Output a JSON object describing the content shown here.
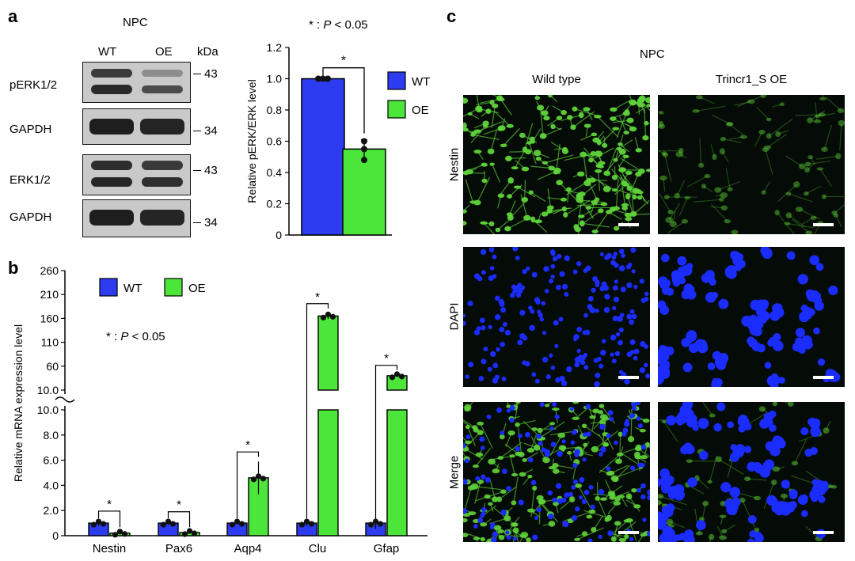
{
  "panel_a": {
    "letter": "a",
    "cell_type": "NPC",
    "lanes": [
      "WT",
      "OE"
    ],
    "mw_unit": "kDa",
    "blots": [
      {
        "label": "pERK1/2",
        "marker": "43"
      },
      {
        "label": "GAPDH",
        "marker": "34"
      },
      {
        "label": "ERK1/2",
        "marker": "43"
      },
      {
        "label": "GAPDH",
        "marker": "34"
      }
    ]
  },
  "panel_b": {
    "letter": "b"
  },
  "panel_c": {
    "letter": "c",
    "cell_type": "NPC",
    "columns": [
      "Wild type",
      "Trincr1_S OE"
    ],
    "rows": [
      "Nestin",
      "DAPI",
      "Merge"
    ]
  },
  "significance_note": "*",
  "significance_text": ": P < 0.05",
  "colors": {
    "wt": "#2d3cf0",
    "oe": "#4ce63a",
    "nestin": "#5fd43a",
    "dapi": "#1a2cff"
  },
  "chart_data": [
    {
      "type": "bar",
      "categories": [
        "WT",
        "OE"
      ],
      "values": [
        1.0,
        0.55
      ],
      "points": [
        [
          1.0,
          1.0,
          1.0
        ],
        [
          0.6,
          0.55,
          0.48
        ]
      ],
      "errors": [
        0.0,
        0.06
      ],
      "ylabel": "Relative pERK/ERK level",
      "ylim": [
        0,
        1.2
      ],
      "yticks": [
        "0",
        "0.2",
        "0.4",
        "0.6",
        "0.8",
        "1.0",
        "1.2"
      ],
      "legend": [
        "WT",
        "OE"
      ],
      "significance": "*",
      "note": "* : P < 0.05"
    },
    {
      "type": "bar",
      "categories": [
        "Nestin",
        "Pax6",
        "Aqp4",
        "Clu",
        "Gfap"
      ],
      "series": [
        {
          "name": "WT",
          "values": [
            1.0,
            1.0,
            1.0,
            1.0,
            1.0
          ],
          "errors": [
            0.2,
            0.15,
            0.1,
            0.2,
            0.45
          ]
        },
        {
          "name": "OE",
          "values": [
            0.2,
            0.25,
            4.6,
            165,
            40
          ],
          "errors": [
            0.1,
            0.05,
            1.3,
            6,
            2
          ]
        }
      ],
      "ylabel": "Relative mRNA expression level",
      "yticks_lower": [
        "0",
        "2.0",
        "4.0",
        "6.0",
        "8.0",
        "10.0"
      ],
      "yticks_upper": [
        "10.0",
        "60",
        "110",
        "160",
        "210",
        "260"
      ],
      "axis_break": true,
      "significance": [
        "*",
        "*",
        "*",
        "*",
        "*"
      ],
      "note": "* : P < 0.05",
      "legend": [
        "WT",
        "OE"
      ]
    }
  ]
}
